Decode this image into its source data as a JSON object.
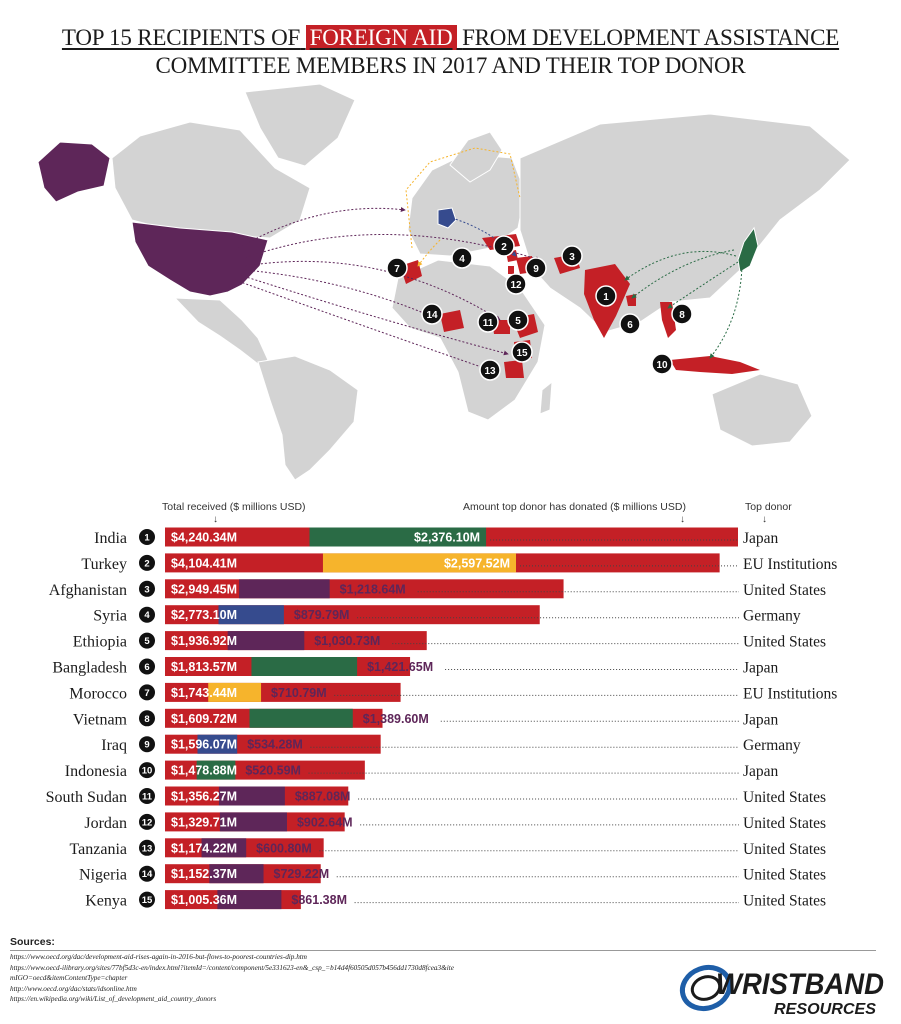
{
  "title": {
    "line1_prefix": "TOP 15 RECIPIENTS OF",
    "line1_highlight": "FOREIGN AID",
    "line1_suffix": "FROM DEVELOPMENT ASSISTANCE",
    "line2": "COMMITTEE MEMBERS IN 2017 AND THEIR TOP DONOR"
  },
  "headers": {
    "total": "Total received ($ millions USD)",
    "donated": "Amount top donor has donated ($ millions USD)",
    "donor": "Top donor"
  },
  "colors": {
    "total_bar": "#c42026",
    "Japan": "#2a6b45",
    "EU Institutions": "#f6b42c",
    "United States": "#5e2659",
    "Germany": "#364b8e",
    "map_land": "#d3d3d3"
  },
  "map_markers": [
    "1",
    "2",
    "3",
    "4",
    "5",
    "6",
    "7",
    "8",
    "9",
    "10",
    "11",
    "12",
    "13",
    "14",
    "15"
  ],
  "chart_data": {
    "type": "bar",
    "categories": [
      "India",
      "Turkey",
      "Afghanistan",
      "Syria",
      "Ethiopia",
      "Bangladesh",
      "Morocco",
      "Vietnam",
      "Iraq",
      "Indonesia",
      "South Sudan",
      "Jordan",
      "Tanzania",
      "Nigeria",
      "Kenya"
    ],
    "ranks": [
      "1",
      "2",
      "3",
      "4",
      "5",
      "6",
      "7",
      "8",
      "9",
      "10",
      "11",
      "12",
      "13",
      "14",
      "15"
    ],
    "series": [
      {
        "name": "Total received ($ millions USD)",
        "values": [
          4240.34,
          4104.41,
          2949.45,
          2773.1,
          1936.92,
          1813.57,
          1743.44,
          1609.72,
          1596.07,
          1478.88,
          1356.27,
          1329.71,
          1174.22,
          1152.37,
          1005.36
        ]
      },
      {
        "name": "Amount top donor has donated ($ millions USD)",
        "values": [
          2376.1,
          2597.52,
          1218.64,
          879.79,
          1030.73,
          1421.65,
          710.79,
          1389.6,
          534.28,
          520.59,
          887.08,
          902.64,
          600.8,
          729.22,
          861.38
        ]
      }
    ],
    "total_labels": [
      "$4,240.34M",
      "$4,104.41M",
      "$2,949.45M",
      "$2,773.10M",
      "$1,936.92M",
      "$1,813.57M",
      "$1,743.44M",
      "$1,609.72M",
      "$1,596.07M",
      "$1,478.88M",
      "$1,356.27M",
      "$1,329.71M",
      "$1,174.22M",
      "$1,152.37M",
      "$1,005.36M"
    ],
    "donated_labels": [
      "$2,376.10M",
      "$2,597.52M",
      "$1,218.64M",
      "$879.79M",
      "$1,030.73M",
      "$1,421.65M",
      "$710.79M",
      "$1,389.60M",
      "$534.28M",
      "$520.59M",
      "$887.08M",
      "$902.64M",
      "$600.80M",
      "$729.22M",
      "$861.38M"
    ],
    "top_donor": [
      "Japan",
      "EU Institutions",
      "United States",
      "Germany",
      "United States",
      "Japan",
      "EU Institutions",
      "Japan",
      "Germany",
      "Japan",
      "United States",
      "United States",
      "United States",
      "United States",
      "United States"
    ],
    "orientation": "horizontal",
    "xlim": [
      0,
      4240.34
    ]
  },
  "sources": {
    "title": "Sources:",
    "lines": [
      "https://www.oecd.org/dac/development-aid-rises-again-in-2016-but-flows-to-poorest-countries-dip.htm",
      "https://www.oecd-ilibrary.org/sites/77bf5d3c-en/index.html?itemId=/content/component/5e331623-en&_csp_=b14d4f60505d057b456dd1730d8fcea3&ite",
      "mIGO=oecd&itemContentType=chapter",
      "http://www.oecd.org/dac/stats/idsonline.htm",
      "https://en.wikipedia.org/wiki/List_of_development_aid_country_donors"
    ]
  },
  "logo": {
    "line1": "WRISTBAND",
    "line2": "RESOURCES"
  }
}
